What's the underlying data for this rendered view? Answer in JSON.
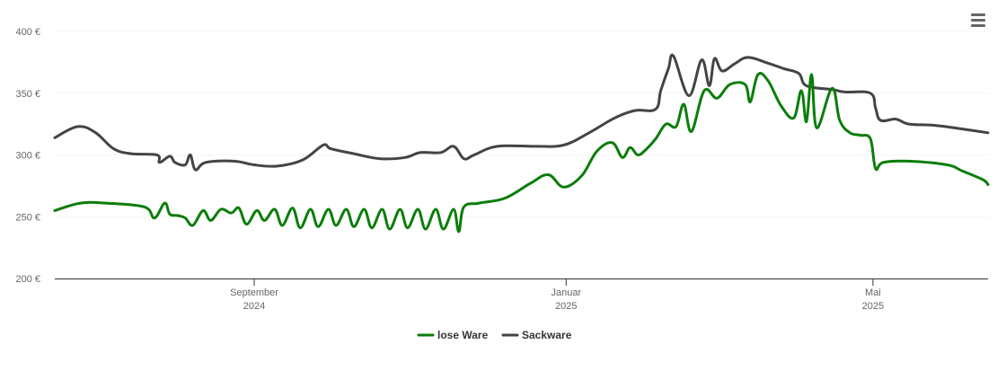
{
  "toolbar": {
    "menu_icon": "hamburger-menu-icon"
  },
  "chart_data": {
    "type": "line",
    "title": "",
    "xlabel": "",
    "ylabel": "",
    "ylim": [
      200,
      400
    ],
    "grid": "horizontal",
    "legend_position": "bottom-center",
    "y_ticks": [
      {
        "value": 200,
        "label": "200 €"
      },
      {
        "value": 250,
        "label": "250 €"
      },
      {
        "value": 300,
        "label": "300 €"
      },
      {
        "value": 350,
        "label": "350 €"
      },
      {
        "value": 400,
        "label": "400 €"
      }
    ],
    "x_ticks": [
      {
        "date": "2024-09-01",
        "month": "September",
        "year": "2024"
      },
      {
        "date": "2025-01-01",
        "month": "Januar",
        "year": "2025"
      },
      {
        "date": "2025-05-01",
        "month": "Mai",
        "year": "2025"
      }
    ],
    "x_range": [
      "2024-06-15",
      "2025-06-15"
    ],
    "series": [
      {
        "name": "lose Ware",
        "color": "#0a7d0a",
        "points": [
          [
            "2024-06-15",
            255
          ],
          [
            "2024-06-25",
            261
          ],
          [
            "2024-07-05",
            261
          ],
          [
            "2024-07-20",
            258
          ],
          [
            "2024-07-24",
            249
          ],
          [
            "2024-07-28",
            261
          ],
          [
            "2024-07-30",
            252
          ],
          [
            "2024-08-02",
            251
          ],
          [
            "2024-08-05",
            249
          ],
          [
            "2024-08-08",
            243
          ],
          [
            "2024-08-12",
            255
          ],
          [
            "2024-08-15",
            247
          ],
          [
            "2024-08-19",
            256
          ],
          [
            "2024-08-23",
            253
          ],
          [
            "2024-08-26",
            257
          ],
          [
            "2024-08-29",
            244
          ],
          [
            "2024-09-02",
            255
          ],
          [
            "2024-09-05",
            247
          ],
          [
            "2024-09-09",
            256
          ],
          [
            "2024-09-12",
            243
          ],
          [
            "2024-09-16",
            257
          ],
          [
            "2024-09-19",
            241
          ],
          [
            "2024-09-23",
            256
          ],
          [
            "2024-09-26",
            242
          ],
          [
            "2024-09-30",
            256
          ],
          [
            "2024-10-03",
            243
          ],
          [
            "2024-10-07",
            256
          ],
          [
            "2024-10-10",
            242
          ],
          [
            "2024-10-14",
            256
          ],
          [
            "2024-10-17",
            241
          ],
          [
            "2024-10-21",
            256
          ],
          [
            "2024-10-24",
            240
          ],
          [
            "2024-10-28",
            256
          ],
          [
            "2024-10-31",
            241
          ],
          [
            "2024-11-04",
            256
          ],
          [
            "2024-11-07",
            240
          ],
          [
            "2024-11-11",
            256
          ],
          [
            "2024-11-14",
            240
          ],
          [
            "2024-11-18",
            256
          ],
          [
            "2024-11-20",
            238
          ],
          [
            "2024-11-22",
            258
          ],
          [
            "2024-11-28",
            261
          ],
          [
            "2024-12-08",
            265
          ],
          [
            "2024-12-18",
            277
          ],
          [
            "2024-12-25",
            284
          ],
          [
            "2024-12-31",
            274
          ],
          [
            "2025-01-07",
            283
          ],
          [
            "2025-01-13",
            303
          ],
          [
            "2025-01-19",
            310
          ],
          [
            "2025-01-23",
            298
          ],
          [
            "2025-01-26",
            306
          ],
          [
            "2025-01-29",
            300
          ],
          [
            "2025-02-01",
            304
          ],
          [
            "2025-02-05",
            313
          ],
          [
            "2025-02-09",
            325
          ],
          [
            "2025-02-13",
            323
          ],
          [
            "2025-02-16",
            341
          ],
          [
            "2025-02-19",
            319
          ],
          [
            "2025-02-24",
            352
          ],
          [
            "2025-03-01",
            346
          ],
          [
            "2025-03-06",
            357
          ],
          [
            "2025-03-12",
            357
          ],
          [
            "2025-03-14",
            343
          ],
          [
            "2025-03-17",
            365
          ],
          [
            "2025-03-21",
            360
          ],
          [
            "2025-03-26",
            340
          ],
          [
            "2025-03-31",
            330
          ],
          [
            "2025-04-03",
            352
          ],
          [
            "2025-04-05",
            327
          ],
          [
            "2025-04-07",
            365
          ],
          [
            "2025-04-09",
            322
          ],
          [
            "2025-04-15",
            354
          ],
          [
            "2025-04-18",
            328
          ],
          [
            "2025-04-22",
            318
          ],
          [
            "2025-04-26",
            316
          ],
          [
            "2025-04-30",
            313
          ],
          [
            "2025-05-02",
            289
          ],
          [
            "2025-05-05",
            294
          ],
          [
            "2025-05-15",
            295
          ],
          [
            "2025-05-30",
            292
          ],
          [
            "2025-06-05",
            287
          ],
          [
            "2025-06-13",
            280
          ],
          [
            "2025-06-15",
            276
          ]
        ]
      },
      {
        "name": "Sackware",
        "color": "#434348",
        "points": [
          [
            "2024-06-15",
            314
          ],
          [
            "2024-06-24",
            323
          ],
          [
            "2024-07-01",
            318
          ],
          [
            "2024-07-08",
            305
          ],
          [
            "2024-07-15",
            301
          ],
          [
            "2024-07-25",
            300
          ],
          [
            "2024-07-26",
            294
          ],
          [
            "2024-07-30",
            299
          ],
          [
            "2024-08-01",
            294
          ],
          [
            "2024-08-05",
            292
          ],
          [
            "2024-08-07",
            300
          ],
          [
            "2024-08-09",
            288
          ],
          [
            "2024-08-13",
            294
          ],
          [
            "2024-08-24",
            295
          ],
          [
            "2024-09-01",
            292
          ],
          [
            "2024-09-10",
            291
          ],
          [
            "2024-09-20",
            296
          ],
          [
            "2024-09-28",
            308
          ],
          [
            "2024-10-01",
            305
          ],
          [
            "2024-10-10",
            301
          ],
          [
            "2024-10-20",
            297
          ],
          [
            "2024-10-30",
            298
          ],
          [
            "2024-11-05",
            302
          ],
          [
            "2024-11-13",
            302
          ],
          [
            "2024-11-18",
            307
          ],
          [
            "2024-11-22",
            297
          ],
          [
            "2024-11-26",
            300
          ],
          [
            "2024-12-05",
            307
          ],
          [
            "2024-12-20",
            307
          ],
          [
            "2024-12-31",
            308
          ],
          [
            "2025-01-10",
            318
          ],
          [
            "2025-01-20",
            330
          ],
          [
            "2025-01-28",
            336
          ],
          [
            "2025-02-05",
            337
          ],
          [
            "2025-02-07",
            352
          ],
          [
            "2025-02-10",
            370
          ],
          [
            "2025-02-12",
            380
          ],
          [
            "2025-02-18",
            348
          ],
          [
            "2025-02-23",
            377
          ],
          [
            "2025-02-26",
            356
          ],
          [
            "2025-02-28",
            378
          ],
          [
            "2025-03-03",
            368
          ],
          [
            "2025-03-08",
            374
          ],
          [
            "2025-03-13",
            379
          ],
          [
            "2025-03-20",
            375
          ],
          [
            "2025-03-27",
            370
          ],
          [
            "2025-04-02",
            366
          ],
          [
            "2025-04-05",
            356
          ],
          [
            "2025-04-15",
            353
          ],
          [
            "2025-04-20",
            351
          ],
          [
            "2025-04-30",
            350
          ],
          [
            "2025-05-02",
            338
          ],
          [
            "2025-05-04",
            328
          ],
          [
            "2025-05-10",
            329
          ],
          [
            "2025-05-15",
            325
          ],
          [
            "2025-05-25",
            324
          ],
          [
            "2025-06-05",
            321
          ],
          [
            "2025-06-15",
            318
          ]
        ]
      }
    ]
  }
}
